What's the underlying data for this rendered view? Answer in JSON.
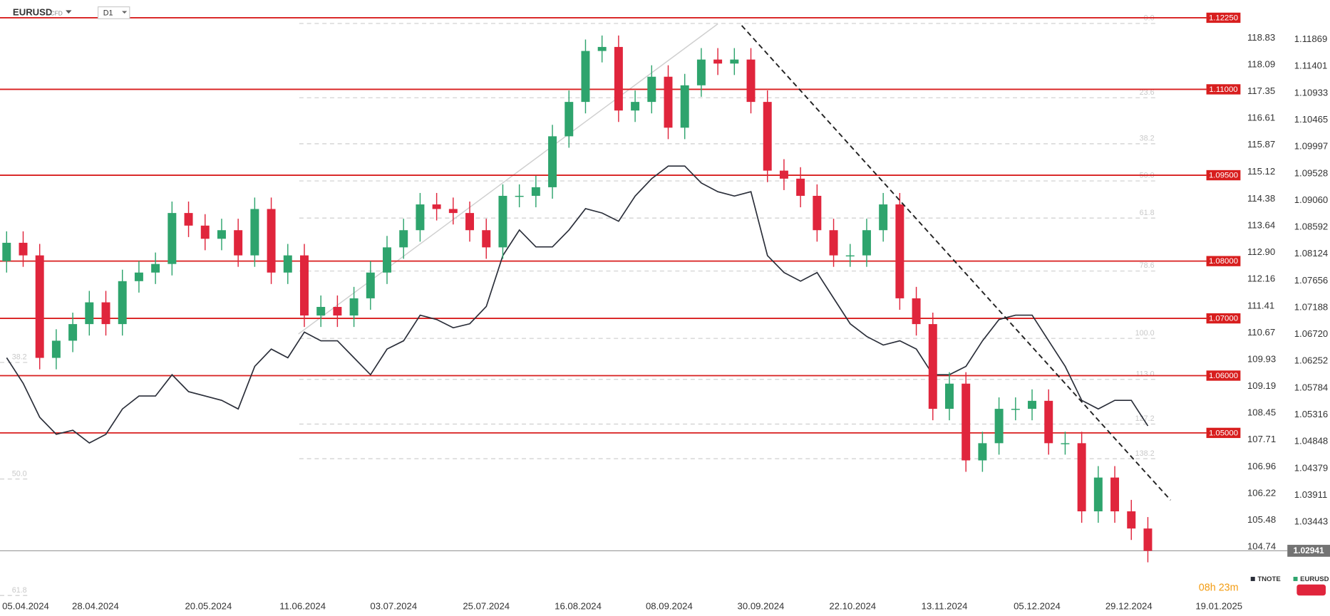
{
  "chart_data": {
    "type": "candlestick",
    "symbol": "EURUSD",
    "symbol_type": "CFD",
    "timeframe": "D1",
    "countdown": "08h 23m",
    "grid": false,
    "xlim": [
      -0.4,
      74.6
    ],
    "xticks": [
      {
        "value": 1.15,
        "label": "05.04.2024"
      },
      {
        "value": 5.37,
        "label": "28.04.2024"
      },
      {
        "value": 12.2,
        "label": "20.05.2024"
      },
      {
        "value": 17.9,
        "label": "11.06.2024"
      },
      {
        "value": 23.4,
        "label": "03.07.2024"
      },
      {
        "value": 29.0,
        "label": "25.07.2024"
      },
      {
        "value": 34.55,
        "label": "16.08.2024"
      },
      {
        "value": 40.06,
        "label": "08.09.2024"
      },
      {
        "value": 45.6,
        "label": "30.09.2024"
      },
      {
        "value": 51.15,
        "label": "22.10.2024"
      },
      {
        "value": 56.7,
        "label": "13.11.2024"
      },
      {
        "value": 62.3,
        "label": "05.12.2024"
      },
      {
        "value": 67.85,
        "label": "29.12.2024"
      },
      {
        "value": 73.3,
        "label": "19.01.2025"
      }
    ],
    "ylim": [
      1.0207,
      1.1256
    ],
    "yticks": [
      1.11869,
      1.11401,
      1.10933,
      1.10465,
      1.09997,
      1.09528,
      {
        "value": 1.0906,
        "label": "1.09060"
      },
      1.08592,
      1.08124,
      1.07656,
      1.07188,
      {
        "value": 1.0672,
        "label": "1.06720"
      },
      1.06252,
      1.05784,
      1.05316,
      1.04848,
      1.04379,
      1.03911,
      1.03443
    ],
    "y2lim": [
      103.25,
      119.89
    ],
    "y2ticks": [
      118.83,
      118.09,
      117.35,
      116.61,
      115.87,
      115.12,
      114.38,
      113.64,
      {
        "value": 112.9,
        "label": "112.90"
      },
      112.16,
      111.41,
      110.67,
      109.93,
      109.19,
      108.45,
      107.71,
      106.96,
      106.22,
      105.48,
      104.74
    ],
    "series": [
      {
        "name": "TNOTE",
        "type": "line",
        "axis": "y2",
        "color": "#2a2e39",
        "values": [
          109.98,
          109.27,
          108.33,
          107.86,
          107.97,
          107.62,
          107.86,
          108.56,
          108.92,
          108.92,
          109.51,
          109.04,
          108.92,
          108.8,
          108.56,
          109.74,
          110.22,
          109.98,
          110.69,
          110.45,
          110.45,
          109.98,
          109.51,
          110.22,
          110.45,
          111.16,
          111.04,
          110.81,
          110.92,
          111.4,
          112.81,
          113.52,
          113.05,
          113.05,
          113.52,
          114.11,
          113.99,
          113.76,
          114.46,
          114.94,
          115.29,
          115.29,
          114.82,
          114.58,
          114.46,
          114.58,
          112.81,
          112.34,
          112.1,
          112.34,
          111.63,
          110.92,
          110.57,
          110.33,
          110.45,
          110.22,
          109.51,
          109.51,
          109.74,
          110.45,
          111.04,
          111.16,
          111.16,
          110.45,
          109.74,
          108.8,
          108.56,
          108.8,
          108.8,
          108.09
        ]
      },
      {
        "name": "EURUSD",
        "type": "candle",
        "up_color": "#2ea46d",
        "down_color": "#e0253c",
        "open": [
          1.08,
          1.0832,
          1.081,
          1.0631,
          1.0661,
          1.069,
          1.0728,
          1.069,
          1.0765,
          1.078,
          1.0795,
          1.0884,
          1.0862,
          1.0839,
          1.0854,
          1.081,
          1.0891,
          1.078,
          1.081,
          1.0705,
          1.072,
          1.0705,
          1.0735,
          1.078,
          1.0824,
          1.0854,
          1.0899,
          1.0891,
          1.0884,
          1.0854,
          1.0824,
          1.0914,
          1.0914,
          1.0929,
          1.1018,
          1.1078,
          1.1167,
          1.1174,
          1.1063,
          1.1078,
          1.1122,
          1.1033,
          1.1107,
          1.1152,
          1.1145,
          1.1152,
          1.1078,
          1.0958,
          1.0944,
          1.0914,
          1.0854,
          1.081,
          1.081,
          1.0854,
          1.0899,
          1.0735,
          1.069,
          1.0542,
          1.0586,
          1.0452,
          1.0482,
          1.0542,
          1.0542,
          1.0556,
          1.0482,
          1.0482,
          1.0363,
          1.0422,
          1.0363,
          1.0333
        ],
        "high": [
          1.0852,
          1.0852,
          1.083,
          1.0681,
          1.071,
          1.0748,
          1.0748,
          1.0785,
          1.08,
          1.0815,
          1.0904,
          1.0904,
          1.0882,
          1.0874,
          1.0874,
          1.0911,
          1.0911,
          1.083,
          1.083,
          1.074,
          1.074,
          1.0755,
          1.08,
          1.0844,
          1.0874,
          1.0919,
          1.0919,
          1.0911,
          1.0904,
          1.0874,
          1.0934,
          1.0934,
          1.0949,
          1.1038,
          1.1098,
          1.1187,
          1.1194,
          1.1194,
          1.1098,
          1.1142,
          1.1142,
          1.1127,
          1.1172,
          1.1172,
          1.1172,
          1.1172,
          1.1098,
          1.0978,
          1.0964,
          1.0934,
          1.0874,
          1.083,
          1.0874,
          1.0919,
          1.0919,
          1.0755,
          1.071,
          1.0606,
          1.0606,
          1.0502,
          1.0562,
          1.0562,
          1.0576,
          1.0576,
          1.0502,
          1.0502,
          1.0442,
          1.0442,
          1.0383,
          1.0353
        ],
        "low": [
          1.078,
          1.079,
          1.0611,
          1.0611,
          1.0641,
          1.067,
          1.067,
          1.067,
          1.0745,
          1.076,
          1.0775,
          1.0842,
          1.0819,
          1.0819,
          1.079,
          1.079,
          1.076,
          1.076,
          1.0685,
          1.0685,
          1.0685,
          1.0685,
          1.0715,
          1.076,
          1.0804,
          1.0834,
          1.0871,
          1.0864,
          1.0834,
          1.0804,
          1.0804,
          1.0894,
          1.0894,
          1.0909,
          1.0998,
          1.1058,
          1.1147,
          1.1043,
          1.1043,
          1.1058,
          1.1013,
          1.1013,
          1.1087,
          1.1125,
          1.1125,
          1.1058,
          1.0938,
          1.0924,
          1.0894,
          1.0834,
          1.079,
          1.079,
          1.079,
          1.0834,
          1.0715,
          1.067,
          1.0522,
          1.0522,
          1.0432,
          1.0432,
          1.0462,
          1.0522,
          1.0522,
          1.0462,
          1.0462,
          1.0343,
          1.0343,
          1.0343,
          1.0313,
          1.0274
        ],
        "close": [
          1.0832,
          1.081,
          1.0631,
          1.0661,
          1.069,
          1.0728,
          1.069,
          1.0765,
          1.078,
          1.0795,
          1.0884,
          1.0862,
          1.0839,
          1.0854,
          1.081,
          1.0891,
          1.078,
          1.081,
          1.0705,
          1.072,
          1.0705,
          1.0735,
          1.078,
          1.0824,
          1.0854,
          1.0899,
          1.0891,
          1.0884,
          1.0854,
          1.0824,
          1.0914,
          1.0914,
          1.0929,
          1.1018,
          1.1078,
          1.1167,
          1.1174,
          1.1063,
          1.1078,
          1.1122,
          1.1033,
          1.1107,
          1.1152,
          1.1145,
          1.1152,
          1.1078,
          1.0958,
          1.0944,
          1.0914,
          1.0854,
          1.081,
          1.081,
          1.0854,
          1.0899,
          1.0735,
          1.069,
          1.0542,
          1.0586,
          1.0452,
          1.0482,
          1.0542,
          1.0542,
          1.0556,
          1.0482,
          1.0482,
          1.0363,
          1.0422,
          1.0363,
          1.0333,
          1.0294
        ]
      }
    ],
    "level_color": "#d81e1e",
    "levels": [
      {
        "value": 1.1225,
        "label": "1.12250"
      },
      {
        "value": 1.11,
        "label": "1.11000"
      },
      {
        "value": 1.095,
        "label": "1.09500"
      },
      {
        "value": 1.08,
        "label": "1.08000"
      },
      {
        "value": 1.07,
        "label": "1.07000"
      },
      {
        "value": 1.06,
        "label": "1.06000"
      },
      {
        "value": 1.05,
        "label": "1.05000"
      }
    ],
    "fib": {
      "start": 1.1215,
      "end": 1.0665,
      "levels": [
        {
          "value": 0,
          "label": "0.0"
        },
        23.6,
        38.2,
        {
          "value": 50,
          "label": "50.0"
        },
        61.8,
        78.6,
        {
          "value": 100,
          "label": "100.0"
        },
        {
          "value": 113,
          "label": "113.0"
        },
        127.2,
        138.2
      ]
    },
    "left_fib": {
      "start": 1.1282,
      "end": 0.9557,
      "levels": [
        38.2,
        {
          "value": 50,
          "label": "50.0"
        },
        61.8
      ]
    },
    "last_price": 1.02941
  }
}
